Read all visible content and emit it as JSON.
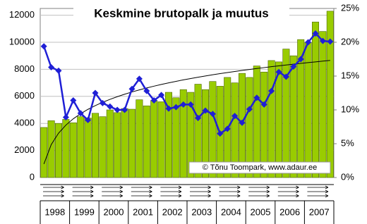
{
  "chart_data": {
    "type": "bar-line",
    "title": "Keskmine brutopalk ja muutus",
    "annotation": "© Tõnu Toompark, www.adaur.ee",
    "categories": [
      null,
      null,
      null,
      null,
      null,
      null,
      null,
      null,
      null,
      null,
      null,
      null,
      null,
      null,
      null,
      null,
      null,
      null,
      null,
      null,
      null,
      null,
      null,
      null,
      null,
      null,
      null,
      null,
      null,
      null,
      null,
      null,
      null,
      null,
      null,
      null,
      null,
      null,
      null,
      null
    ],
    "groups": [
      "1998",
      "1999",
      "2000",
      "2001",
      "2002",
      "2003",
      "2004",
      "2005",
      "2006",
      "2007"
    ],
    "series": [
      {
        "color": "#99cc00",
        "values": [
          3700,
          4200,
          4000,
          4300,
          4050,
          4500,
          4400,
          4750,
          4500,
          5000,
          4800,
          5100,
          5050,
          5750,
          5300,
          5700,
          5600,
          6300,
          5900,
          6500,
          6300,
          6900,
          6500,
          7100,
          6750,
          7400,
          7000,
          7700,
          7400,
          8250,
          7800,
          8650,
          8550,
          9500,
          9000,
          10200,
          10000,
          11500,
          10800,
          12300
        ]
      },
      {
        "color": "#1f1fd6",
        "axis": "y2",
        "values": [
          19.4,
          16.3,
          15.8,
          8.9,
          11.4,
          9.5,
          8.5,
          12.5,
          11,
          10.5,
          10,
          10,
          13.1,
          14.6,
          12.8,
          11.4,
          12.2,
          10.2,
          10.4,
          10.8,
          10.8,
          8.8,
          9.9,
          9.4,
          6.5,
          7.2,
          9.1,
          8.1,
          10.1,
          11.8,
          10.8,
          12.8,
          15.6,
          14.9,
          16.4,
          17.5,
          20,
          21.3,
          20.2,
          20.1
        ]
      }
    ],
    "trendline": true,
    "ylim": [
      0,
      12500
    ],
    "yticks": [
      0,
      2000,
      4000,
      6000,
      8000,
      10000,
      12000
    ],
    "y2lim": [
      0,
      25
    ],
    "y2ticks": [
      {
        "value": 0,
        "label": "0%"
      },
      {
        "value": 5,
        "label": "5%"
      },
      {
        "value": 10,
        "label": "10%"
      },
      {
        "value": 15,
        "label": "15%"
      },
      {
        "value": 20,
        "label": "20%"
      },
      {
        "value": 25,
        "label": "25%"
      }
    ],
    "grid": true
  }
}
